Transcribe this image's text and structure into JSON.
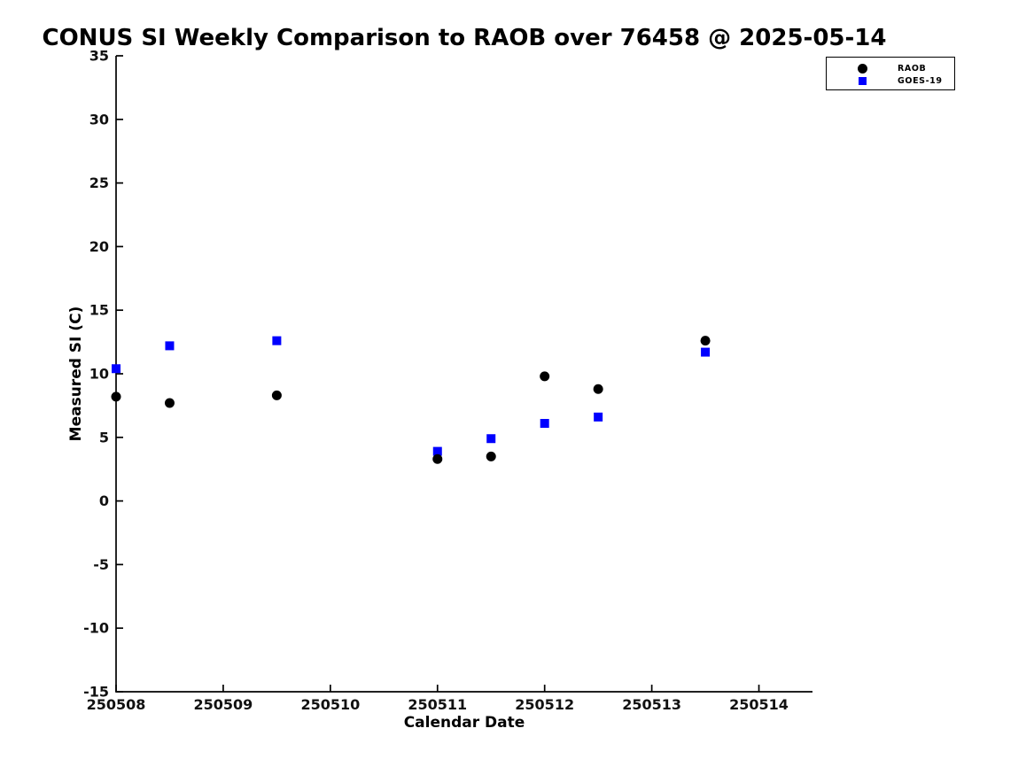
{
  "chart_data": {
    "type": "scatter",
    "title": "CONUS SI Weekly Comparison to RAOB over 76458 @ 2025-05-14",
    "xlabel": "Calendar Date",
    "ylabel": "Measured SI (C)",
    "xlim": [
      250508,
      250514.5
    ],
    "ylim": [
      -15,
      35
    ],
    "x_ticks": [
      250508,
      250509,
      250510,
      250511,
      250512,
      250513,
      250514
    ],
    "y_ticks": [
      -15,
      -10,
      -5,
      0,
      5,
      10,
      15,
      20,
      25,
      30,
      35
    ],
    "grid": false,
    "legend_position": "outside-upper-right",
    "axis_color": "#000000",
    "series": [
      {
        "name": "RAOB",
        "marker": "circle",
        "color": "#000000",
        "x": [
          250508,
          250508.5,
          250509.5,
          250511,
          250511.5,
          250512,
          250512.5,
          250513.5
        ],
        "y": [
          8.2,
          7.7,
          8.3,
          3.3,
          3.5,
          9.8,
          8.8,
          12.6
        ]
      },
      {
        "name": "GOES-19",
        "marker": "square",
        "color": "#0000FF",
        "x": [
          250508,
          250508.5,
          250509.5,
          250511,
          250511.5,
          250512,
          250512.5,
          250513.5
        ],
        "y": [
          10.4,
          12.2,
          12.6,
          3.9,
          4.9,
          6.1,
          6.6,
          11.7
        ]
      }
    ]
  }
}
